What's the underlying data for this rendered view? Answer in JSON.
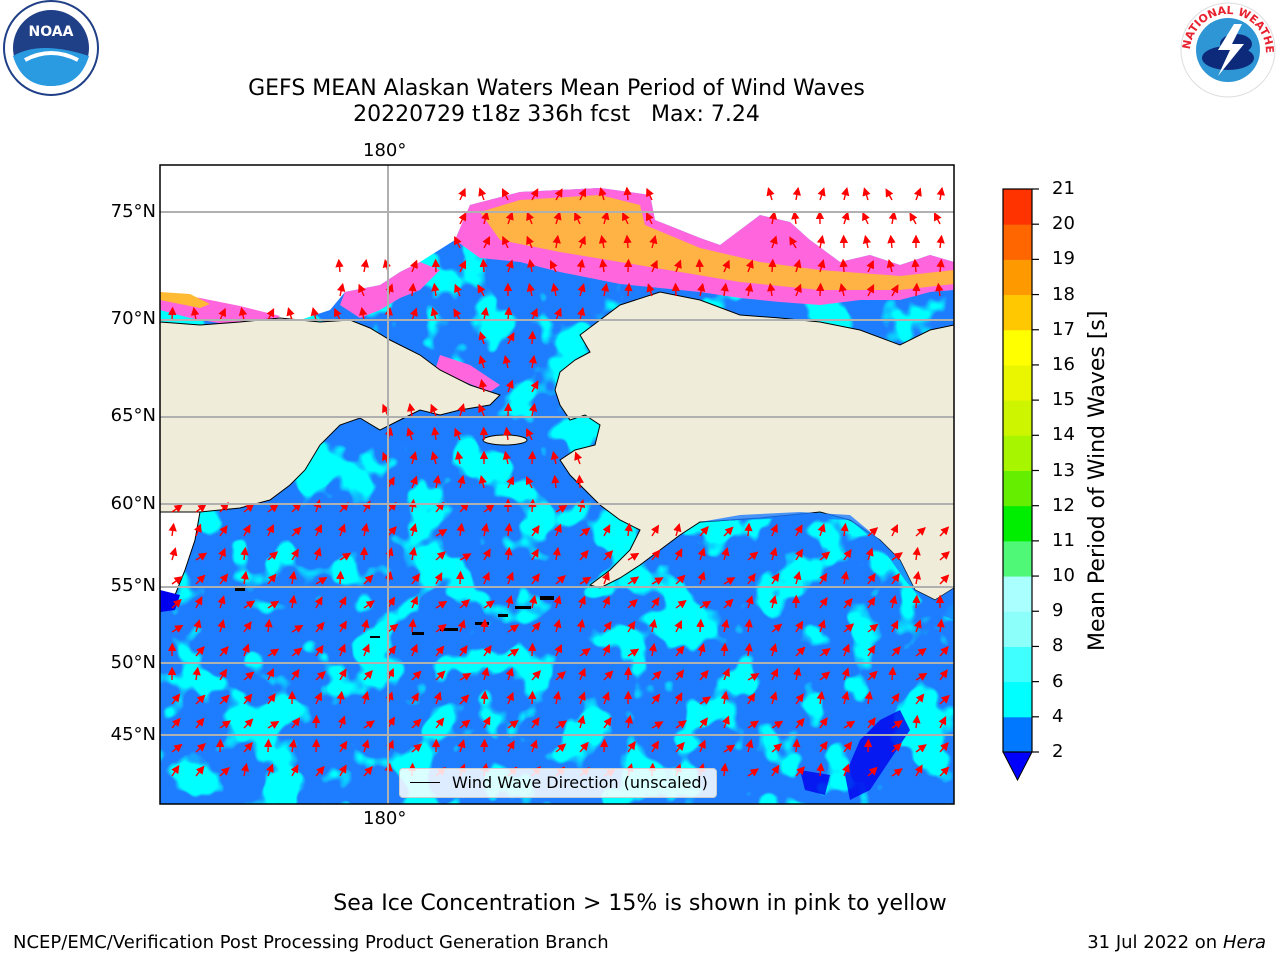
{
  "title": {
    "line1": "GEFS MEAN Alaskan Waters Mean Period of Wind Waves",
    "line2": "20220729 t18z 336h fcst   Max: 7.24"
  },
  "map": {
    "lon_label_top": "180°",
    "lon_label_bottom": "180°",
    "lat_labels": [
      "75°N",
      "70°N",
      "65°N",
      "60°N",
      "55°N",
      "50°N",
      "45°N"
    ],
    "legend": {
      "entry": "Wind Wave Direction (unscaled)"
    },
    "colors": {
      "land": "#efedd9",
      "ocean_low": "#1e7dff",
      "ocean_mid": "#00ffff",
      "arrow": "#ff0000",
      "grid": "#b0b0b0",
      "ice_pink": "#ff55dd",
      "ice_yellow": "#ffcc33"
    }
  },
  "colorbar": {
    "label": "Mean Period of Wind Waves [s]",
    "ticks": [
      "2",
      "4",
      "6",
      "8",
      "9",
      "10",
      "11",
      "12",
      "13",
      "14",
      "15",
      "16",
      "17",
      "18",
      "19",
      "20",
      "21"
    ],
    "colors": [
      "#0078ff",
      "#00ffff",
      "#40ffff",
      "#8dfffb",
      "#aaffff",
      "#50f878",
      "#00ee00",
      "#66ee00",
      "#a8f500",
      "#cdf500",
      "#eaf500",
      "#ffff00",
      "#ffc800",
      "#ff9900",
      "#ff6600",
      "#ff3300",
      "#ff0000"
    ],
    "extend_color": "#0000ff"
  },
  "footnote": "Sea Ice Concentration > 15% is shown in pink to yellow",
  "credits": {
    "left": "NCEP/EMC/Verification Post Processing Product Generation Branch",
    "right_prefix": "31 Jul 2022 on ",
    "right_machine": "Hera"
  },
  "logos": {
    "left": "NOAA",
    "right": "NATIONAL WEATHER SERVICE"
  }
}
